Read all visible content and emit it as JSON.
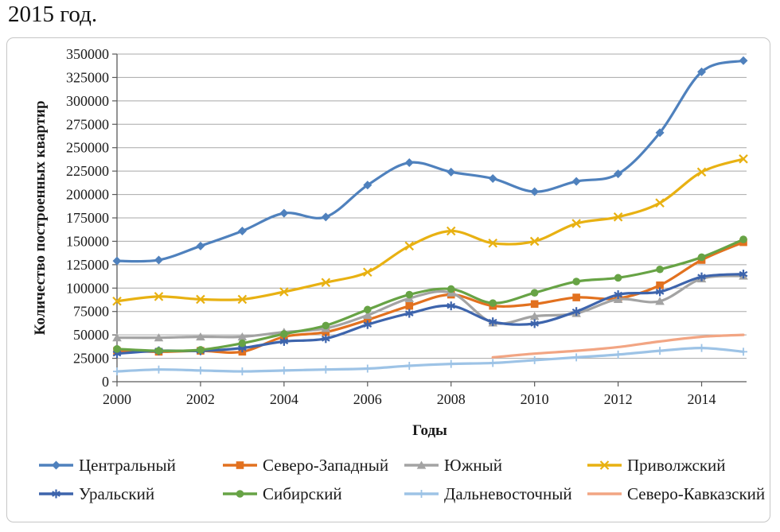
{
  "caption": "2015 год.",
  "chart_data": {
    "type": "line",
    "title": "",
    "xlabel": "Годы",
    "ylabel": "Количество построенных квартир",
    "x": [
      2000,
      2001,
      2002,
      2003,
      2004,
      2005,
      2006,
      2007,
      2008,
      2009,
      2010,
      2011,
      2012,
      2013,
      2014,
      2015
    ],
    "x_tick_years": [
      2000,
      2002,
      2004,
      2006,
      2008,
      2010,
      2012,
      2014
    ],
    "ylim": [
      0,
      350000
    ],
    "y_tick_step": 25000,
    "grid": "horizontal",
    "legend_position": "bottom",
    "legend_columns": 4,
    "line_smoothing": true,
    "series": [
      {
        "key": "central",
        "name": "Центральный",
        "color": "#4f81bd",
        "marker": "diamond",
        "values": [
          129000,
          130000,
          145000,
          161000,
          180000,
          176000,
          210000,
          234000,
          224000,
          217000,
          203000,
          214000,
          222000,
          266000,
          331000,
          343000
        ]
      },
      {
        "key": "northwest",
        "name": "Северо-Западный",
        "color": "#e2711f",
        "marker": "square",
        "values": [
          33000,
          32000,
          33000,
          32000,
          48000,
          53000,
          66000,
          81000,
          93000,
          81000,
          83000,
          90000,
          89000,
          103000,
          130000,
          149000
        ]
      },
      {
        "key": "south",
        "name": "Южный",
        "color": "#a3a3a3",
        "marker": "triangle",
        "values": [
          47000,
          47000,
          48000,
          48000,
          53000,
          57000,
          71000,
          89000,
          95000,
          63000,
          70000,
          73000,
          88000,
          86000,
          110000,
          113000
        ]
      },
      {
        "key": "volga",
        "name": "Приволжский",
        "color": "#e8b112",
        "marker": "x",
        "values": [
          86000,
          91000,
          88000,
          88000,
          96000,
          106000,
          117000,
          145000,
          161000,
          148000,
          150000,
          169000,
          176000,
          191000,
          224000,
          238000
        ]
      },
      {
        "key": "ural",
        "name": "Уральский",
        "color": "#3d64ac",
        "marker": "asterisk",
        "values": [
          30000,
          33000,
          33000,
          36000,
          43000,
          46000,
          61000,
          73000,
          81000,
          64000,
          62000,
          75000,
          93000,
          96000,
          112000,
          115000
        ]
      },
      {
        "key": "siberian",
        "name": "Сибирский",
        "color": "#67a345",
        "marker": "circle",
        "values": [
          35000,
          33000,
          34000,
          41000,
          51000,
          60000,
          77000,
          93000,
          99000,
          84000,
          95000,
          107000,
          111000,
          120000,
          133000,
          152000
        ]
      },
      {
        "key": "fareast",
        "name": "Дальневосточный",
        "color": "#9dc3e6",
        "marker": "plus",
        "values": [
          11000,
          13000,
          12000,
          11000,
          12000,
          13000,
          14000,
          17000,
          19000,
          20000,
          23000,
          26000,
          29000,
          33000,
          36000,
          32000
        ]
      },
      {
        "key": "northcaucasus",
        "name": "Северо-Кавказский",
        "color": "#f2a583",
        "marker": "none",
        "values": [
          null,
          null,
          null,
          null,
          null,
          null,
          null,
          null,
          null,
          26000,
          30000,
          33000,
          37000,
          43000,
          48000,
          50000
        ]
      }
    ]
  }
}
